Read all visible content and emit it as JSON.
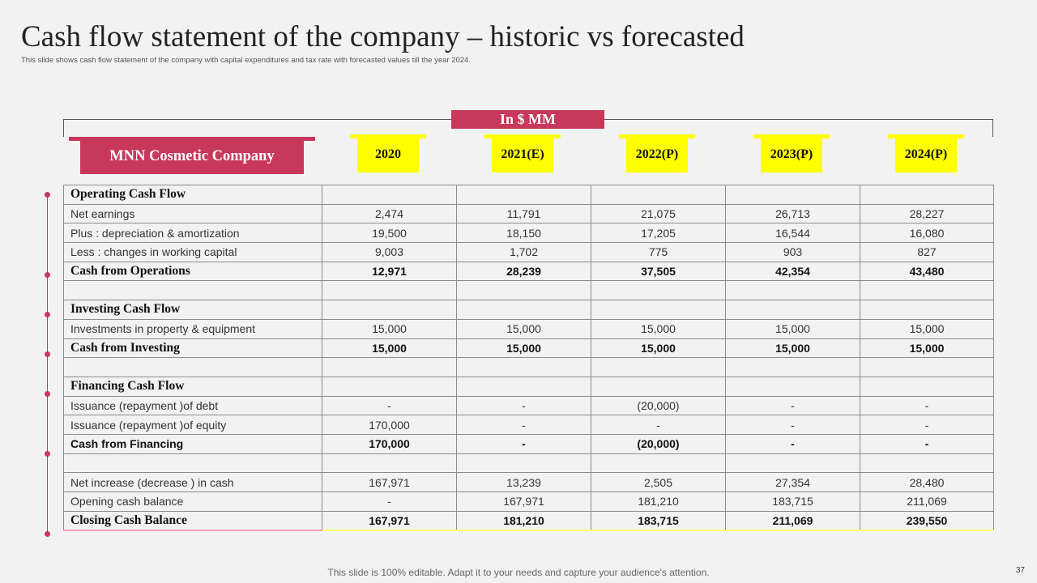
{
  "title": "Cash flow statement of the company – historic vs forecasted",
  "subtitle": "This slide shows cash flow statement of the company with capital expenditures and tax rate with forecasted values till the year 2024.",
  "unit_label": "In $ MM",
  "company_label": "MNN Cosmetic Company",
  "years": [
    "2020",
    "2021(E)",
    "2022(P)",
    "2023(P)",
    "2024(P)"
  ],
  "rows": [
    {
      "label": "Operating Cash Flow",
      "values": [
        "",
        "",
        "",
        "",
        ""
      ]
    },
    {
      "label": "Net earnings",
      "values": [
        "2,474",
        "11,791",
        "21,075",
        "26,713",
        "28,227"
      ]
    },
    {
      "label": "Plus : depreciation & amortization",
      "values": [
        "19,500",
        "18,150",
        "17,205",
        "16,544",
        "16,080"
      ]
    },
    {
      "label": "Less : changes in working capital",
      "values": [
        "9,003",
        "1,702",
        "775",
        "903",
        "827"
      ]
    },
    {
      "label": "Cash from Operations",
      "values": [
        "12,971",
        "28,239",
        "37,505",
        "42,354",
        "43,480"
      ]
    },
    {
      "label": "",
      "values": [
        "",
        "",
        "",
        "",
        ""
      ]
    },
    {
      "label": "Investing Cash Flow",
      "values": [
        "",
        "",
        "",
        "",
        ""
      ]
    },
    {
      "label": "Investments in property & equipment",
      "values": [
        "15,000",
        "15,000",
        "15,000",
        "15,000",
        "15,000"
      ]
    },
    {
      "label": "Cash from Investing",
      "values": [
        "15,000",
        "15,000",
        "15,000",
        "15,000",
        "15,000"
      ]
    },
    {
      "label": "",
      "values": [
        "",
        "",
        "",
        "",
        ""
      ]
    },
    {
      "label": "Financing Cash Flow",
      "values": [
        "",
        "",
        "",
        "",
        ""
      ]
    },
    {
      "label": "Issuance (repayment )of debt",
      "values": [
        "-",
        "-",
        "(20,000)",
        "-",
        "-"
      ]
    },
    {
      "label": "Issuance (repayment )of equity",
      "values": [
        "170,000",
        "-",
        "-",
        "-",
        "-"
      ]
    },
    {
      "label": "Cash from Financing",
      "values": [
        "170,000",
        "-",
        "(20,000)",
        "-",
        "-"
      ]
    },
    {
      "label": "",
      "values": [
        "",
        "",
        "",
        "",
        ""
      ]
    },
    {
      "label": "Net increase (decrease ) in cash",
      "values": [
        "167,971",
        "13,239",
        "2,505",
        "27,354",
        "28,480"
      ]
    },
    {
      "label": "Opening cash balance",
      "values": [
        "-",
        "167,971",
        "181,210",
        "183,715",
        "211,069"
      ]
    },
    {
      "label": "Closing Cash Balance",
      "values": [
        "167,971",
        "181,210",
        "183,715",
        "211,069",
        "239,550"
      ]
    }
  ],
  "footer": "This slide is 100% editable. Adapt it to your needs and capture your audience's attention.",
  "page_number": "37",
  "colors": {
    "accent": "#c8385a",
    "highlight": "#ffff00",
    "background": "#f2f2f2"
  }
}
